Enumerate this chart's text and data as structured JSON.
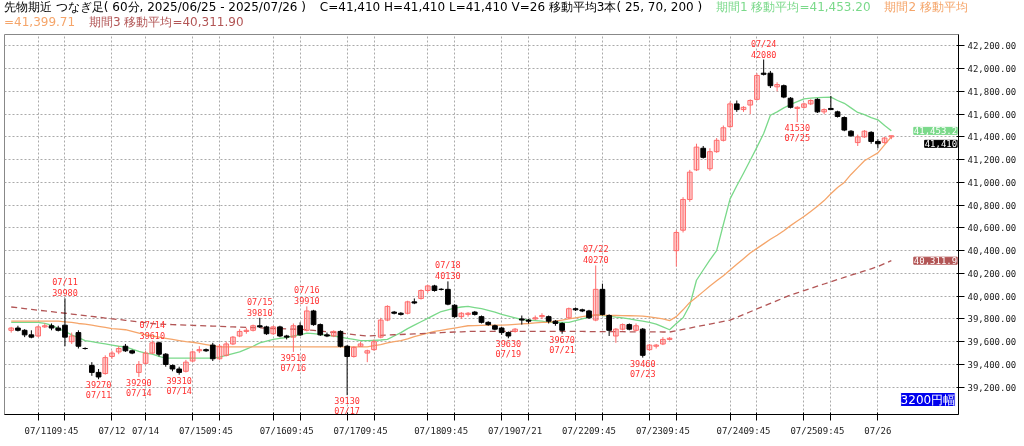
{
  "chart_data": {
    "type": "candlestick",
    "title": "先物期近 つなぎ足( 60分, 2025/06/25 - 2025/07/26 )",
    "subtitle": "C=41,410 H=41,410 L=41,410 V=26   移動平均3本( 25, 70, 200 )",
    "categories": [
      null,
      null,
      null,
      null,
      "07/11",
      null,
      null,
      null,
      "09:45",
      null,
      null,
      null,
      null,
      null,
      null,
      "07/12",
      null,
      null,
      null,
      null,
      "07/14",
      null,
      null,
      null,
      null,
      null,
      null,
      "07/15",
      null,
      null,
      null,
      "09:45",
      null,
      null,
      null,
      null,
      null,
      null,
      null,
      "07/16",
      null,
      null,
      null,
      "09:45",
      null,
      null,
      null,
      null,
      null,
      null,
      "07/17",
      null,
      null,
      null,
      "09:45",
      null,
      null,
      null,
      null,
      null,
      null,
      null,
      "07/18",
      null,
      null,
      null,
      "09:45",
      null,
      null,
      null,
      null,
      null,
      null,
      "07/19",
      null,
      null,
      null,
      "07/21",
      null,
      null,
      null,
      null,
      null,
      null,
      "07/22",
      null,
      null,
      null,
      "09:45",
      null,
      null,
      null,
      null,
      null,
      null,
      "07/23",
      null,
      null,
      null,
      "09:45",
      null,
      null,
      null,
      null,
      null,
      null,
      null,
      "07/24",
      null,
      null,
      null,
      "09:45",
      null,
      null,
      null,
      null,
      null,
      null,
      "07/25",
      null,
      null,
      null,
      "09:45",
      null,
      null,
      null,
      null,
      null,
      null,
      "07/26",
      null,
      null
    ],
    "ohlc": [
      [
        39700,
        39730,
        39680,
        39720
      ],
      [
        39720,
        39740,
        39690,
        39700
      ],
      [
        39700,
        39710,
        39640,
        39660
      ],
      [
        39660,
        39700,
        39630,
        39640
      ],
      [
        39650,
        39740,
        39640,
        39730
      ],
      [
        39730,
        39760,
        39720,
        39740
      ],
      [
        39740,
        39760,
        39700,
        39720
      ],
      [
        39720,
        39740,
        39690,
        39700
      ],
      [
        39745,
        39980,
        39560,
        39640
      ],
      [
        39600,
        39680,
        39580,
        39650
      ],
      [
        39680,
        39700,
        39540,
        39560
      ],
      [
        39540,
        39550,
        39530,
        39540
      ],
      [
        39390,
        39420,
        39300,
        39330
      ],
      [
        39330,
        39360,
        39270,
        39290
      ],
      [
        39320,
        39480,
        39310,
        39460
      ],
      [
        39470,
        39520,
        39450,
        39500
      ],
      [
        39510,
        39560,
        39490,
        39540
      ],
      [
        39560,
        39580,
        39510,
        39520
      ],
      [
        39520,
        39530,
        39490,
        39500
      ],
      [
        39330,
        39430,
        39290,
        39400
      ],
      [
        39410,
        39520,
        39400,
        39500
      ],
      [
        39500,
        39610,
        39490,
        39590
      ],
      [
        39590,
        39600,
        39470,
        39490
      ],
      [
        39490,
        39500,
        39380,
        39400
      ],
      [
        39390,
        39400,
        39340,
        39360
      ],
      [
        39360,
        39380,
        39310,
        39330
      ],
      [
        39340,
        39440,
        39330,
        39420
      ],
      [
        39430,
        39520,
        39420,
        39510
      ],
      [
        39520,
        39560,
        39500,
        39530
      ],
      [
        39530,
        39540,
        39510,
        39520
      ],
      [
        39570,
        39590,
        39430,
        39450
      ],
      [
        39450,
        39580,
        39440,
        39560
      ],
      [
        39480,
        39600,
        39470,
        39580
      ],
      [
        39580,
        39650,
        39570,
        39640
      ],
      [
        39650,
        39710,
        39640,
        39690
      ],
      [
        39690,
        39720,
        39670,
        39700
      ],
      [
        39700,
        39750,
        39690,
        39740
      ],
      [
        39740,
        39810,
        39720,
        39730
      ],
      [
        39730,
        39740,
        39660,
        39670
      ],
      [
        39670,
        39740,
        39660,
        39730
      ],
      [
        39730,
        39740,
        39640,
        39650
      ],
      [
        39650,
        39660,
        39620,
        39640
      ],
      [
        39640,
        39760,
        39510,
        39740
      ],
      [
        39740,
        39770,
        39650,
        39660
      ],
      [
        39700,
        39910,
        39690,
        39870
      ],
      [
        39870,
        39880,
        39740,
        39750
      ],
      [
        39750,
        39760,
        39650,
        39660
      ],
      [
        39660,
        39680,
        39640,
        39650
      ],
      [
        39650,
        39700,
        39640,
        39690
      ],
      [
        39690,
        39700,
        39550,
        39560
      ],
      [
        39560,
        39570,
        39130,
        39470
      ],
      [
        39470,
        39560,
        39460,
        39550
      ],
      [
        39560,
        39600,
        39560,
        39580
      ],
      [
        39500,
        39530,
        39420,
        39520
      ],
      [
        39530,
        39620,
        39520,
        39600
      ],
      [
        39640,
        39810,
        39630,
        39790
      ],
      [
        39790,
        39920,
        39780,
        39910
      ],
      [
        39860,
        39870,
        39840,
        39850
      ],
      [
        39850,
        39860,
        39830,
        39840
      ],
      [
        39850,
        39960,
        39840,
        39950
      ],
      [
        39950,
        39980,
        39930,
        39940
      ],
      [
        39980,
        40060,
        39970,
        40050
      ],
      [
        40050,
        40100,
        40030,
        40090
      ],
      [
        40090,
        40100,
        40040,
        40050
      ],
      [
        40060,
        40070,
        40050,
        40060
      ],
      [
        40060,
        40130,
        39920,
        39930
      ],
      [
        39920,
        39930,
        39810,
        39820
      ],
      [
        39820,
        39860,
        39800,
        39850
      ],
      [
        39840,
        39860,
        39820,
        39850
      ],
      [
        39860,
        39870,
        39830,
        39840
      ],
      [
        39820,
        39830,
        39760,
        39770
      ],
      [
        39770,
        39780,
        39740,
        39750
      ],
      [
        39740,
        39750,
        39700,
        39710
      ],
      [
        39720,
        39730,
        39660,
        39680
      ],
      [
        39680,
        39690,
        39630,
        39650
      ],
      [
        39690,
        39720,
        39680,
        39710
      ],
      [
        39800,
        39830,
        39750,
        39790
      ],
      [
        39790,
        39800,
        39760,
        39780
      ],
      [
        39800,
        39830,
        39790,
        39810
      ],
      [
        39820,
        39850,
        39800,
        39830
      ],
      [
        39820,
        39830,
        39760,
        39780
      ],
      [
        39780,
        39790,
        39740,
        39760
      ],
      [
        39760,
        39770,
        39670,
        39700
      ],
      [
        39810,
        39900,
        39800,
        39890
      ],
      [
        39890,
        39900,
        39870,
        39880
      ],
      [
        39880,
        39890,
        39860,
        39870
      ],
      [
        39870,
        39880,
        39800,
        39810
      ],
      [
        39790,
        40270,
        39780,
        40060
      ],
      [
        40060,
        40110,
        39830,
        39840
      ],
      [
        39830,
        39840,
        39650,
        39700
      ],
      [
        39650,
        39720,
        39590,
        39710
      ],
      [
        39710,
        39760,
        39700,
        39750
      ],
      [
        39750,
        39760,
        39700,
        39710
      ],
      [
        39700,
        39760,
        39690,
        39740
      ],
      [
        39710,
        39720,
        39460,
        39480
      ],
      [
        39530,
        39580,
        39520,
        39570
      ],
      [
        39560,
        39580,
        39540,
        39570
      ],
      [
        39580,
        39640,
        39570,
        39620
      ],
      [
        39620,
        39640,
        39610,
        39630
      ],
      [
        40400,
        40580,
        40260,
        40560
      ],
      [
        40580,
        40870,
        40560,
        40850
      ],
      [
        40850,
        41110,
        40830,
        41090
      ],
      [
        41110,
        41340,
        41100,
        41310
      ],
      [
        41300,
        41320,
        41210,
        41220
      ],
      [
        41120,
        41300,
        41100,
        41270
      ],
      [
        41270,
        41390,
        41260,
        41370
      ],
      [
        41370,
        41500,
        41360,
        41480
      ],
      [
        41490,
        41710,
        41480,
        41690
      ],
      [
        41690,
        41720,
        41620,
        41640
      ],
      [
        41640,
        41670,
        41620,
        41660
      ],
      [
        41680,
        41730,
        41600,
        41720
      ],
      [
        41730,
        41960,
        41720,
        41940
      ],
      [
        41960,
        42080,
        41940,
        41950
      ],
      [
        41960,
        41980,
        41830,
        41850
      ],
      [
        41840,
        41880,
        41800,
        41860
      ],
      [
        41850,
        41860,
        41740,
        41750
      ],
      [
        41740,
        41750,
        41650,
        41660
      ],
      [
        41650,
        41670,
        41530,
        41660
      ],
      [
        41660,
        41700,
        41650,
        41690
      ],
      [
        41690,
        41730,
        41680,
        41720
      ],
      [
        41730,
        41740,
        41610,
        41620
      ],
      [
        41620,
        41650,
        41600,
        41640
      ],
      [
        41650,
        41760,
        41640,
        41640
      ],
      [
        41620,
        41630,
        41570,
        41580
      ],
      [
        41570,
        41580,
        41450,
        41460
      ],
      [
        41450,
        41460,
        41400,
        41410
      ],
      [
        41350,
        41420,
        41320,
        41400
      ],
      [
        41400,
        41460,
        41390,
        41450
      ],
      [
        41440,
        41450,
        41340,
        41360
      ],
      [
        41360,
        41380,
        41300,
        41340
      ],
      [
        41350,
        41400,
        41340,
        41390
      ],
      [
        41400,
        41410,
        41380,
        41410
      ]
    ],
    "colors": [
      "#ff6b6b",
      "#000000",
      "#000000",
      "#000000",
      "#ff6b6b",
      "#ff6b6b",
      "#000000",
      "#000000",
      "#000000",
      "#ff6b6b",
      "#000000",
      "#000000",
      "#000000",
      "#000000",
      "#ff6b6b",
      "#ff6b6b",
      "#ff6b6b",
      "#000000",
      "#000000",
      "#ff6b6b",
      "#ff6b6b",
      "#ff6b6b",
      "#000000",
      "#000000",
      "#000000",
      "#000000",
      "#ff6b6b",
      "#ff6b6b",
      "#ff6b6b",
      "#000000",
      "#000000",
      "#ff6b6b",
      "#ff6b6b",
      "#ff6b6b",
      "#ff6b6b",
      "#ff6b6b",
      "#ff6b6b",
      "#000000",
      "#000000",
      "#ff6b6b",
      "#000000",
      "#000000",
      "#ff6b6b",
      "#000000",
      "#ff6b6b",
      "#000000",
      "#000000",
      "#000000",
      "#ff6b6b",
      "#000000",
      "#000000",
      "#ff6b6b",
      "#ff6b6b",
      "#ff6b6b",
      "#ff6b6b",
      "#ff6b6b",
      "#ff6b6b",
      "#000000",
      "#000000",
      "#ff6b6b",
      "#000000",
      "#ff6b6b",
      "#ff6b6b",
      "#000000",
      "#000000",
      "#000000",
      "#000000",
      "#ff6b6b",
      "#ff6b6b",
      "#000000",
      "#000000",
      "#000000",
      "#000000",
      "#000000",
      "#000000",
      "#ff6b6b",
      "#000000",
      "#000000",
      "#ff6b6b",
      "#ff6b6b",
      "#000000",
      "#000000",
      "#000000",
      "#ff6b6b",
      "#000000",
      "#000000",
      "#000000",
      "#ff6b6b",
      "#000000",
      "#000000",
      "#ff6b6b",
      "#ff6b6b",
      "#000000",
      "#ff6b6b",
      "#000000",
      "#ff6b6b",
      "#ff6b6b",
      "#ff6b6b",
      "#ff6b6b",
      "#ff6b6b",
      "#ff6b6b",
      "#ff6b6b",
      "#ff6b6b",
      "#000000",
      "#ff6b6b",
      "#ff6b6b",
      "#ff6b6b",
      "#ff6b6b",
      "#000000",
      "#ff6b6b",
      "#ff6b6b",
      "#ff6b6b",
      "#000000",
      "#000000",
      "#ff6b6b",
      "#000000",
      "#000000",
      "#ff6b6b",
      "#ff6b6b",
      "#ff6b6b",
      "#000000",
      "#ff6b6b",
      "#000000",
      "#000000",
      "#000000",
      "#000000",
      "#ff6b6b",
      "#ff6b6b",
      "#000000",
      "#000000",
      "#ff6b6b",
      "#ff6b6b"
    ],
    "value_labels": [
      null,
      null,
      null,
      null,
      null,
      null,
      null,
      null,
      "07/11\n39980",
      null,
      null,
      null,
      null,
      "39270\n07/11",
      null,
      null,
      null,
      null,
      null,
      "39290\n07/14",
      null,
      "07/14\n39610",
      null,
      null,
      null,
      "39310\n07/14",
      null,
      null,
      null,
      null,
      null,
      null,
      null,
      null,
      null,
      null,
      null,
      "07/15\n39810",
      null,
      null,
      null,
      null,
      "39510\n07/16",
      null,
      "07/16\n39910",
      null,
      null,
      null,
      null,
      null,
      "39130\n07/17",
      null,
      null,
      null,
      null,
      null,
      null,
      null,
      null,
      null,
      null,
      null,
      null,
      null,
      null,
      "07/18\n40130",
      null,
      null,
      null,
      null,
      null,
      null,
      null,
      null,
      "39630\n07/19",
      null,
      null,
      null,
      null,
      null,
      null,
      null,
      "39670\n07/21",
      null,
      null,
      null,
      null,
      "07/22\n40270",
      null,
      null,
      null,
      null,
      null,
      null,
      "39460\n07/23",
      null,
      null,
      null,
      null,
      null,
      null,
      null,
      null,
      null,
      null,
      null,
      null,
      null,
      null,
      null,
      null,
      null,
      "07/24\n42080",
      null,
      null,
      null,
      null,
      "41530\n07/25",
      null,
      null,
      null,
      null,
      null,
      null,
      null,
      null,
      null,
      null,
      null,
      null,
      null,
      null
    ],
    "series": [
      {
        "type": "line",
        "name": "期間1 移動平均=41,453.20",
        "color": "#7ad98a",
        "line_style": "solid",
        "values": [
          39770,
          39770,
          39770,
          39770,
          39770,
          39760,
          39745,
          39715,
          39690,
          39660,
          39635,
          39610,
          39600,
          39590,
          39580,
          39570,
          39560,
          39555,
          39535,
          39515,
          39500,
          39490,
          39470,
          39455,
          39455,
          39455,
          39455,
          39455,
          39455,
          39455,
          39455,
          39465,
          39480,
          39495,
          39510,
          39535,
          39560,
          39590,
          39605,
          39620,
          39630,
          39635,
          39650,
          39660,
          39675,
          39670,
          39665,
          39655,
          39650,
          39640,
          39630,
          39620,
          39610,
          39610,
          39612,
          39615,
          39620,
          39650,
          39680,
          39715,
          39745,
          39775,
          39805,
          39835,
          39865,
          39880,
          39895,
          39905,
          39910,
          39900,
          39890,
          39875,
          39860,
          39840,
          39825,
          39810,
          39795,
          39790,
          39785,
          39780,
          39770,
          39770,
          39770,
          39770,
          39785,
          39800,
          39815,
          39835,
          39830,
          39825,
          39815,
          39810,
          39800,
          39790,
          39780,
          39770,
          39755,
          39730,
          39705,
          39760,
          39810,
          39920,
          40140,
          40230,
          40320,
          40400,
          40630,
          40855,
          40970,
          41080,
          41195,
          41310,
          41430,
          41590,
          41620,
          41655,
          41685,
          41710,
          41735,
          41740,
          41745,
          41748,
          41750,
          41720,
          41695,
          41655,
          41615,
          41595,
          41570,
          41550,
          41500,
          41453
        ]
      },
      {
        "type": "line",
        "name": "期間2 移動平均=41,399.71",
        "color": "#f5a56a",
        "line_style": "solid",
        "values": [
          39780,
          39780,
          39780,
          39780,
          39780,
          39780,
          39780,
          39780,
          39775,
          39770,
          39760,
          39755,
          39745,
          39735,
          39725,
          39715,
          39710,
          39705,
          39690,
          39675,
          39660,
          39650,
          39640,
          39630,
          39620,
          39610,
          39600,
          39595,
          39585,
          39575,
          39565,
          39555,
          39555,
          39555,
          39555,
          39555,
          39555,
          39555,
          39555,
          39555,
          39555,
          39555,
          39555,
          39555,
          39555,
          39555,
          39555,
          39555,
          39555,
          39555,
          39555,
          39555,
          39555,
          39555,
          39565,
          39575,
          39590,
          39600,
          39610,
          39625,
          39645,
          39660,
          39675,
          39690,
          39700,
          39710,
          39720,
          39730,
          39740,
          39742,
          39744,
          39745,
          39745,
          39745,
          39748,
          39752,
          39756,
          39760,
          39765,
          39770,
          39770,
          39780,
          39790,
          39800,
          39810,
          39820,
          39830,
          39835,
          39833,
          39831,
          39830,
          39829,
          39828,
          39826,
          39825,
          39818,
          39810,
          39800,
          39785,
          39820,
          39880,
          39945,
          39990,
          40040,
          40090,
          40135,
          40180,
          40230,
          40280,
          40330,
          40380,
          40420,
          40460,
          40500,
          40535,
          40575,
          40620,
          40660,
          40700,
          40745,
          40790,
          40840,
          40900,
          40955,
          41000,
          41070,
          41130,
          41190,
          41225,
          41260,
          41330,
          41400
        ]
      },
      {
        "type": "line",
        "name": "期間3 移動平均=40,311.90",
        "color": "#b25555",
        "line_style": "dashed",
        "values": [
          39905,
          39898,
          39891,
          39884,
          39877,
          39870,
          39864,
          39857,
          39850,
          39843,
          39836,
          39829,
          39822,
          39815,
          39808,
          39801,
          39795,
          39788,
          39781,
          39774,
          39767,
          39760,
          39755,
          39753,
          39750,
          39748,
          39746,
          39744,
          39741,
          39739,
          39737,
          39735,
          39732,
          39730,
          39728,
          39725,
          39723,
          39721,
          39719,
          39716,
          39714,
          39712,
          39710,
          39708,
          39705,
          39699,
          39693,
          39687,
          39681,
          39675,
          39669,
          39662,
          39656,
          39650,
          39653,
          39655,
          39658,
          39661,
          39663,
          39666,
          39669,
          39671,
          39674,
          39677,
          39679,
          39682,
          39685,
          39687,
          39690,
          39690,
          39690,
          39690,
          39690,
          39690,
          39690,
          39690,
          39690,
          39690,
          39690,
          39690,
          39690,
          39690,
          39690,
          39690,
          39690,
          39690,
          39689,
          39689,
          39689,
          39688,
          39688,
          39688,
          39687,
          39687,
          39686,
          39686,
          39686,
          39685,
          39685,
          39697,
          39708,
          39720,
          39732,
          39743,
          39755,
          39767,
          39778,
          39790,
          39814,
          39839,
          39863,
          39888,
          39912,
          39937,
          39961,
          39986,
          40010,
          40029,
          40049,
          40068,
          40088,
          40107,
          40126,
          40146,
          40165,
          40184,
          40203,
          40222,
          40241,
          40260,
          40286,
          40312
        ]
      }
    ],
    "ylim": [
      38960,
      42300
    ],
    "yticks": [
      {
        "value": 39200,
        "label": "39,200.00"
      },
      {
        "value": 39400,
        "label": "39,400.00"
      },
      {
        "value": 39600,
        "label": "39,600.00"
      },
      {
        "value": 39800,
        "label": "39,800.00"
      },
      {
        "value": 40000,
        "label": "40,000.00"
      },
      {
        "value": 40200,
        "label": "40,200.00"
      },
      {
        "value": 40400,
        "label": "40,400.00"
      },
      {
        "value": 40600,
        "label": "40,600.00"
      },
      {
        "value": 40800,
        "label": "40,800.00"
      },
      {
        "value": 41000,
        "label": "41,000.00"
      },
      {
        "value": 41200,
        "label": "41,200.00"
      },
      {
        "value": 41400,
        "label": "41,400.00"
      },
      {
        "value": 41600,
        "label": "41,600.00"
      },
      {
        "value": 41800,
        "label": "41,800.00"
      },
      {
        "value": 42000,
        "label": "42,000.00"
      },
      {
        "value": 42200,
        "label": "42,200.00"
      }
    ],
    "grid": true,
    "legend": "top",
    "annotations": [
      "41,453.2",
      "41,410",
      "40,311.9",
      "3200円幅"
    ]
  }
}
